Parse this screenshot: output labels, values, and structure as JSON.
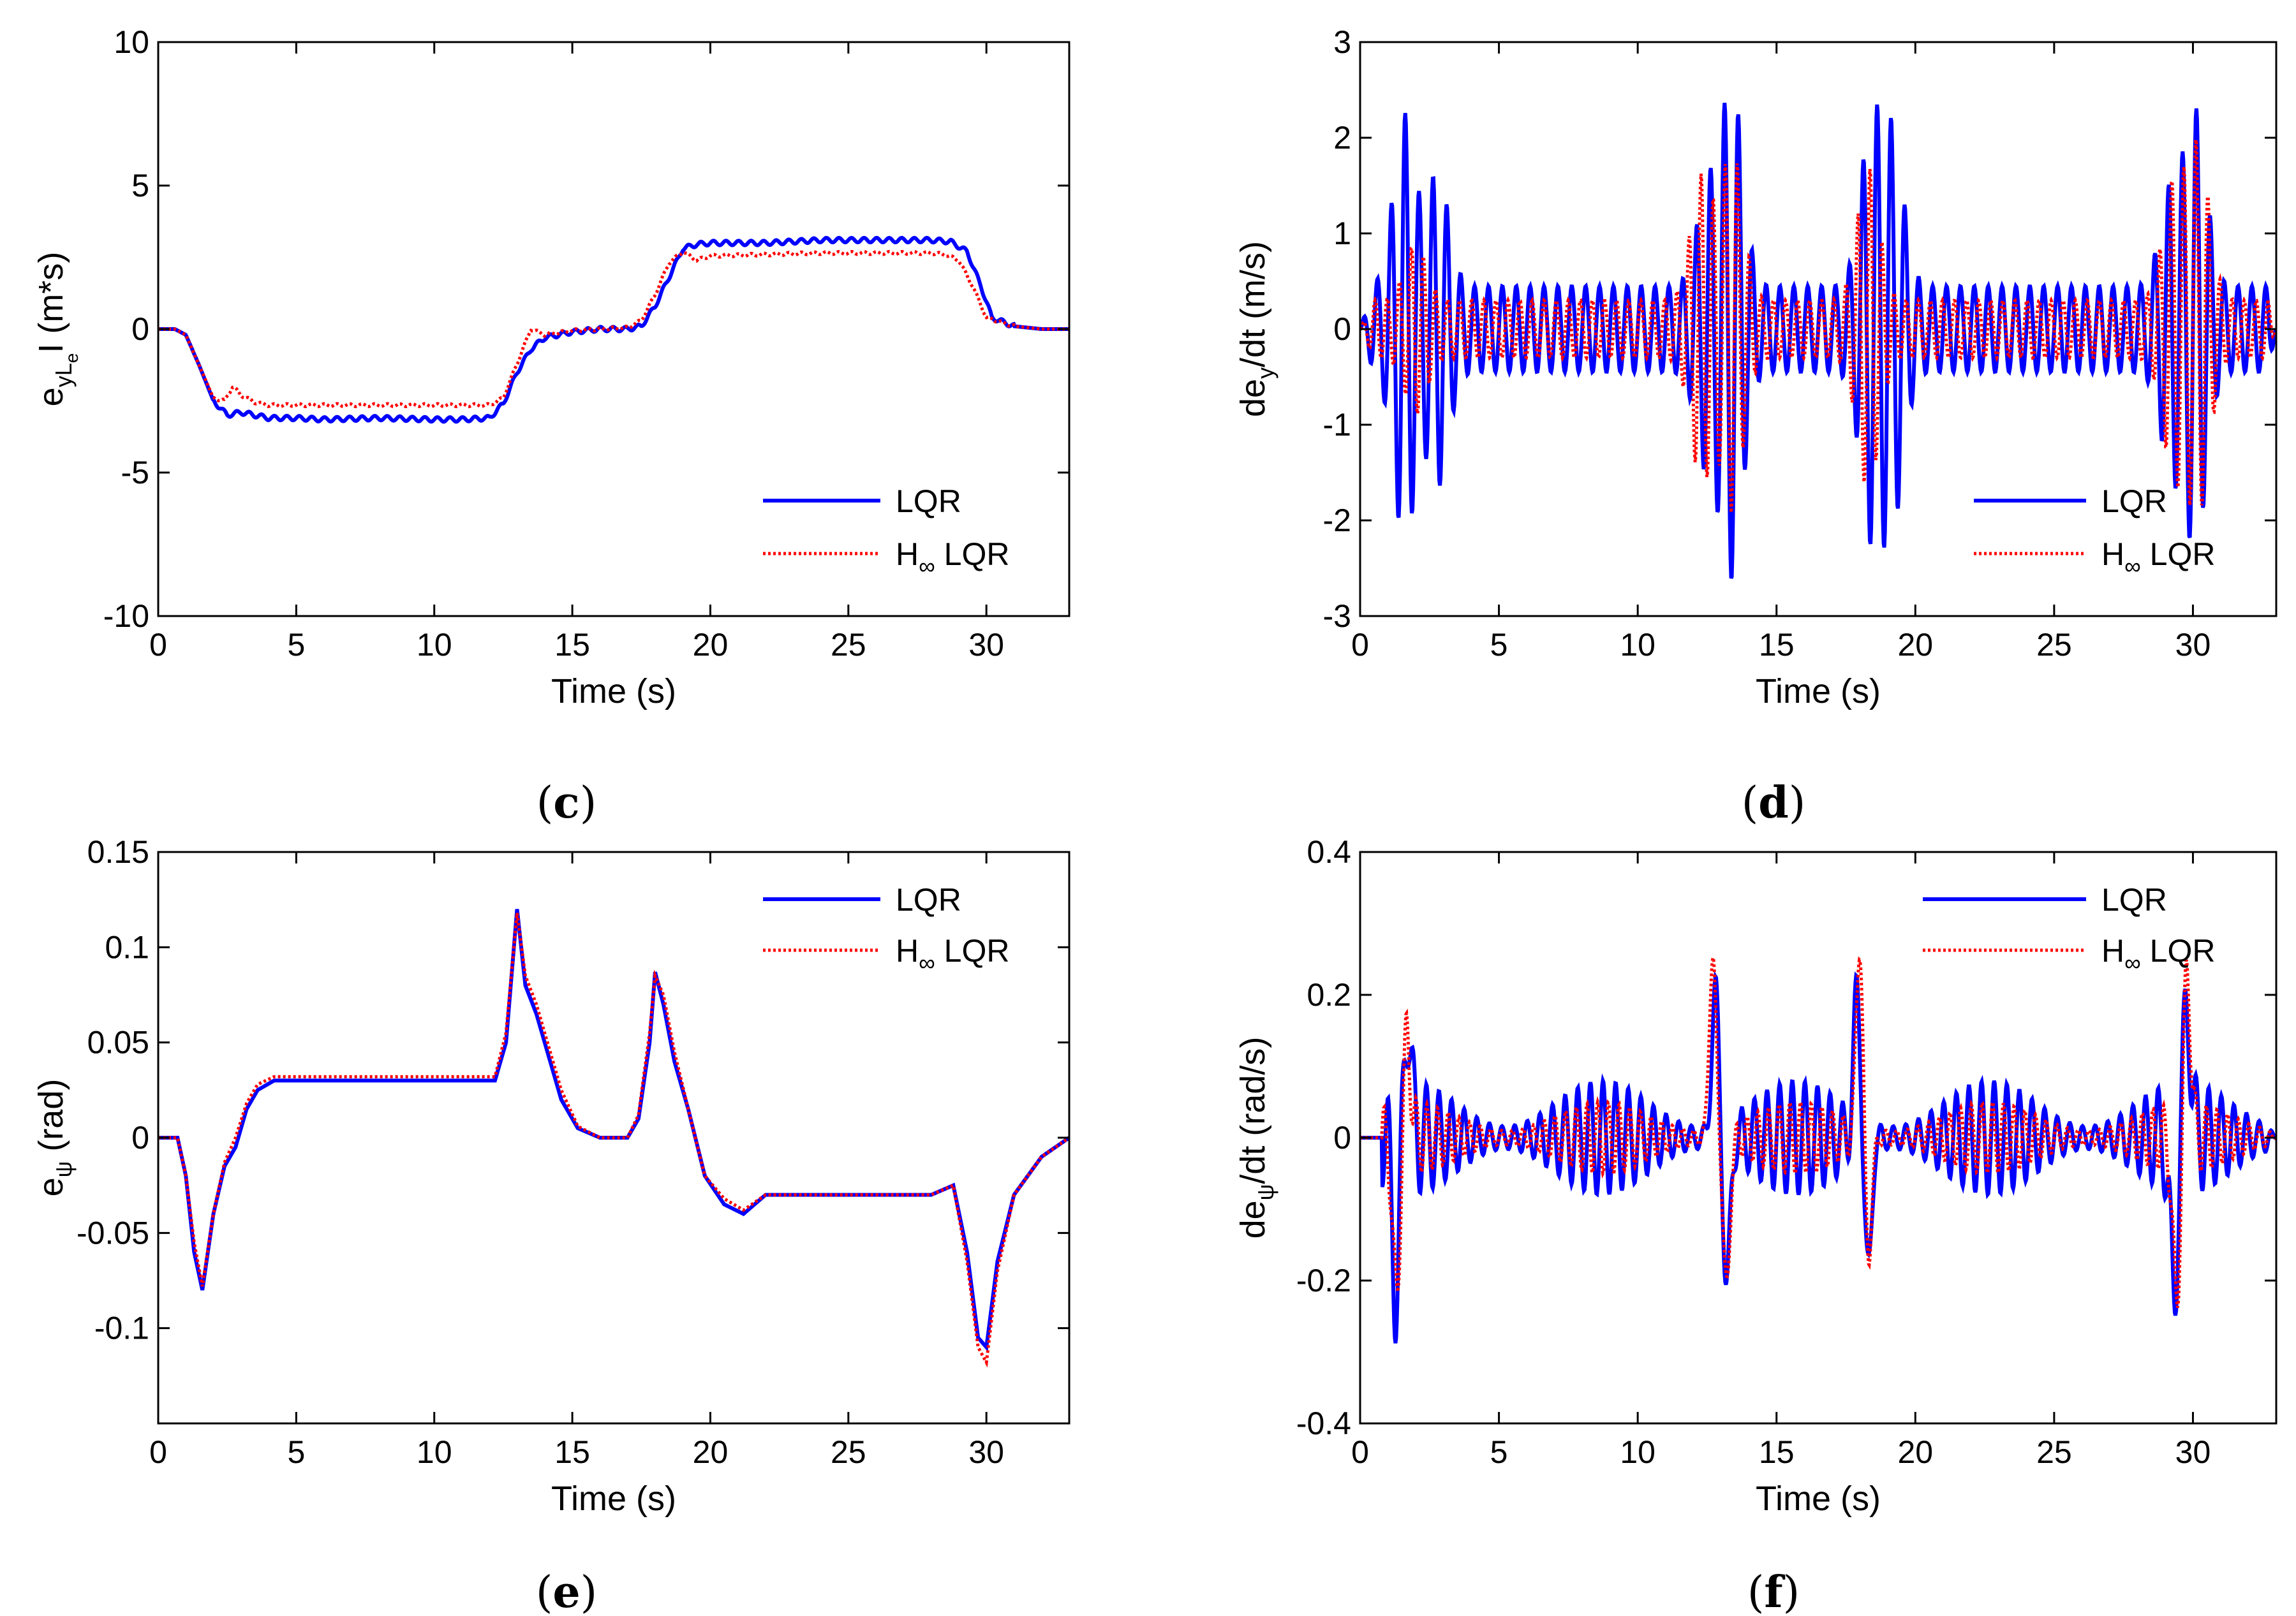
{
  "figure_captions": [
    {
      "paren_open": "(",
      "letter": "c",
      "paren_close": ")"
    },
    {
      "paren_open": "(",
      "letter": "d",
      "paren_close": ")"
    },
    {
      "paren_open": "(",
      "letter": "e",
      "paren_close": ")"
    },
    {
      "paren_open": "(",
      "letter": "f",
      "paren_close": ")"
    }
  ],
  "colors": {
    "lqr": "#0000ff",
    "hinf": "#ff0000",
    "axes": "#000000"
  },
  "chart_data": [
    {
      "id": "c",
      "type": "line",
      "xlabel": "Time (s)",
      "ylabel": {
        "main": "e",
        "sub": "yL",
        "subsub": "e",
        "bar": "I",
        "unit": " (m*s)"
      },
      "xlim": [
        0,
        33
      ],
      "ylim": [
        -10,
        10
      ],
      "xticks": [
        0,
        5,
        10,
        15,
        20,
        25,
        30
      ],
      "xtick_labels": [
        "0",
        "5",
        "10",
        "15",
        "20",
        "25",
        "30"
      ],
      "yticks": [
        -10,
        -5,
        0,
        5,
        10
      ],
      "ytick_labels": [
        "-10",
        "-5",
        "0",
        "5",
        "10"
      ],
      "legend": {
        "position": "bottom-right",
        "lqr": "LQR",
        "hinf_main": "H",
        "hinf_sub": "∞",
        "hinf_rest": " LQR"
      },
      "series": [
        {
          "name": "LQR",
          "style": "solid",
          "color": "#0000ff",
          "x": [
            0,
            0.6,
            1.0,
            1.5,
            2.0,
            2.5,
            3,
            4,
            5,
            6,
            8,
            10,
            11,
            12,
            12.5,
            13,
            13.5,
            14,
            15,
            16,
            17,
            17.5,
            18,
            18.5,
            19,
            19.5,
            20,
            22,
            24,
            26,
            28,
            28.7,
            29.3,
            29.8,
            30.2,
            31,
            32,
            33
          ],
          "y": [
            0,
            0,
            -0.2,
            -1.3,
            -2.5,
            -3.0,
            -2.9,
            -3.1,
            -3.1,
            -3.15,
            -3.1,
            -3.15,
            -3.15,
            -3.1,
            -2.6,
            -1.5,
            -0.7,
            -0.3,
            -0.1,
            0,
            0,
            0.1,
            0.8,
            1.8,
            2.8,
            2.95,
            3.0,
            3.0,
            3.1,
            3.1,
            3.1,
            3.05,
            2.7,
            1.5,
            0.4,
            0.1,
            0,
            0
          ],
          "ripple": 0.08
        },
        {
          "name": "H∞ LQR",
          "style": "dotted",
          "color": "#ff0000",
          "x": [
            0,
            0.6,
            1.0,
            1.5,
            2.0,
            2.4,
            2.7,
            3.0,
            3.5,
            4,
            6,
            8,
            10,
            12,
            12.5,
            13,
            13.5,
            14,
            15,
            16,
            17,
            17.5,
            18,
            18.5,
            19,
            19.5,
            20,
            22,
            24,
            26,
            28,
            28.5,
            29,
            29.5,
            30,
            31,
            32,
            33
          ],
          "y": [
            0,
            0,
            -0.2,
            -1.3,
            -2.4,
            -2.5,
            -2.0,
            -2.3,
            -2.55,
            -2.65,
            -2.65,
            -2.65,
            -2.65,
            -2.65,
            -2.4,
            -1.2,
            0,
            -0.2,
            -0.05,
            0,
            0.05,
            0.3,
            1.2,
            2.3,
            2.7,
            2.4,
            2.55,
            2.6,
            2.65,
            2.65,
            2.65,
            2.6,
            2.4,
            1.5,
            0.4,
            0.1,
            0,
            0
          ],
          "ripple": 0.05
        }
      ]
    },
    {
      "id": "d",
      "type": "line",
      "xlabel": "Time (s)",
      "ylabel": {
        "main": "de",
        "sub": "y",
        "rest": "/dt (m/s)"
      },
      "xlim": [
        0,
        33
      ],
      "ylim": [
        -3,
        3
      ],
      "xticks": [
        0,
        5,
        10,
        15,
        20,
        25,
        30
      ],
      "xtick_labels": [
        "0",
        "5",
        "10",
        "15",
        "20",
        "25",
        "30"
      ],
      "yticks": [
        -3,
        -2,
        -1,
        0,
        1,
        2,
        3
      ],
      "ytick_labels": [
        "-3",
        "-2",
        "-1",
        "0",
        "1",
        "2",
        "3"
      ],
      "legend": {
        "position": "bottom-right",
        "lqr": "LQR",
        "hinf_main": "H",
        "hinf_sub": "∞",
        "hinf_rest": " LQR"
      },
      "series": [
        {
          "name": "LQR",
          "style": "solid",
          "color": "#0000ff",
          "osc_freq": 2.0,
          "bursts": [
            [
              1.6,
              1.8
            ],
            [
              2.8,
              1.2
            ],
            [
              12.5,
              1.0
            ],
            [
              13.4,
              2.1
            ],
            [
              18.4,
              1.65
            ],
            [
              19.2,
              1.5
            ],
            [
              29.2,
              1.0
            ],
            [
              30.1,
              1.8
            ]
          ],
          "base_amp": 0.45
        },
        {
          "name": "H∞ LQR",
          "style": "dotted",
          "color": "#ff0000",
          "osc_freq": 2.3,
          "bursts": [
            [
              2.0,
              0.6
            ],
            [
              12.3,
              1.3
            ],
            [
              13.4,
              1.6
            ],
            [
              18.3,
              1.4
            ],
            [
              29.3,
              1.2
            ],
            [
              30.2,
              1.6
            ]
          ],
          "base_amp": 0.3
        }
      ]
    },
    {
      "id": "e",
      "type": "line",
      "xlabel": "Time (s)",
      "ylabel": {
        "main": "e",
        "sub": "ψ",
        "rest": " (rad)"
      },
      "xlim": [
        0,
        33
      ],
      "ylim": [
        -0.15,
        0.15
      ],
      "xticks": [
        0,
        5,
        10,
        15,
        20,
        25,
        30
      ],
      "xtick_labels": [
        "0",
        "5",
        "10",
        "15",
        "20",
        "25",
        "30"
      ],
      "yticks": [
        -0.1,
        -0.05,
        0,
        0.05,
        0.1,
        0.15
      ],
      "ytick_labels": [
        "-0.1",
        "-0.05",
        "0",
        "0.05",
        "0.1",
        "0.15"
      ],
      "legend": {
        "position": "top-right",
        "lqr": "LQR",
        "hinf_main": "H",
        "hinf_sub": "∞",
        "hinf_rest": " LQR"
      },
      "series": [
        {
          "name": "LQR",
          "style": "solid",
          "color": "#0000ff",
          "x": [
            0,
            0.7,
            1.0,
            1.3,
            1.6,
            2.0,
            2.4,
            2.8,
            3.2,
            3.6,
            4.2,
            5,
            7,
            9,
            11,
            12.2,
            12.6,
            13.0,
            13.3,
            13.7,
            14.0,
            14.6,
            15.2,
            16,
            17,
            17.4,
            17.8,
            18.0,
            18.3,
            18.7,
            19.2,
            19.8,
            20.5,
            21.2,
            22,
            24,
            26,
            28,
            28.8,
            29.3,
            29.7,
            30.0,
            30.4,
            31,
            32,
            33
          ],
          "y": [
            0,
            0,
            -0.02,
            -0.06,
            -0.08,
            -0.04,
            -0.015,
            -0.005,
            0.015,
            0.025,
            0.03,
            0.03,
            0.03,
            0.03,
            0.03,
            0.03,
            0.05,
            0.12,
            0.08,
            0.065,
            0.05,
            0.02,
            0.005,
            0,
            0,
            0.01,
            0.05,
            0.087,
            0.07,
            0.04,
            0.015,
            -0.02,
            -0.035,
            -0.04,
            -0.03,
            -0.03,
            -0.03,
            -0.03,
            -0.025,
            -0.06,
            -0.105,
            -0.11,
            -0.065,
            -0.03,
            -0.01,
            0
          ]
        },
        {
          "name": "H∞ LQR",
          "style": "dotted",
          "color": "#ff0000",
          "x": [
            0,
            0.7,
            1.0,
            1.3,
            1.6,
            2.0,
            2.4,
            2.8,
            3.2,
            3.6,
            4.2,
            5,
            7,
            9,
            11,
            12.2,
            12.6,
            13.0,
            13.3,
            13.7,
            14.0,
            14.6,
            15.2,
            16,
            17,
            17.4,
            17.8,
            18.0,
            18.3,
            18.7,
            19.2,
            19.8,
            20.5,
            21.2,
            22,
            24,
            26,
            28,
            28.8,
            29.3,
            29.7,
            30.0,
            30.4,
            31,
            32,
            33
          ],
          "y": [
            0,
            0,
            -0.02,
            -0.055,
            -0.078,
            -0.04,
            -0.013,
            0,
            0.018,
            0.028,
            0.032,
            0.032,
            0.032,
            0.032,
            0.032,
            0.032,
            0.055,
            0.118,
            0.085,
            0.07,
            0.055,
            0.025,
            0.006,
            0,
            0,
            0.012,
            0.055,
            0.085,
            0.075,
            0.045,
            0.015,
            -0.02,
            -0.032,
            -0.038,
            -0.03,
            -0.03,
            -0.03,
            -0.03,
            -0.025,
            -0.065,
            -0.11,
            -0.118,
            -0.07,
            -0.03,
            -0.01,
            0
          ]
        }
      ]
    },
    {
      "id": "f",
      "type": "line",
      "xlabel": "Time (s)",
      "ylabel": {
        "main": "de",
        "sub": "ψ",
        "rest": "/dt (rad/s)"
      },
      "xlim": [
        0,
        33
      ],
      "ylim": [
        -0.4,
        0.4
      ],
      "xticks": [
        0,
        5,
        10,
        15,
        20,
        25,
        30
      ],
      "xtick_labels": [
        "0",
        "5",
        "10",
        "15",
        "20",
        "25",
        "30"
      ],
      "yticks": [
        -0.4,
        -0.2,
        0,
        0.2,
        0.4
      ],
      "ytick_labels": [
        "-0.4",
        "-0.2",
        "0",
        "0.2",
        "0.4"
      ],
      "legend": {
        "position": "top-right",
        "lqr": "LQR",
        "hinf_main": "H",
        "hinf_sub": "∞",
        "hinf_rest": " LQR"
      },
      "series": [
        {
          "name": "LQR",
          "style": "solid",
          "color": "#0000ff",
          "osc_freq": 2.2,
          "spikes": [
            [
              1.3,
              -0.22
            ],
            [
              1.7,
              0.18
            ],
            [
              12.8,
              0.21
            ],
            [
              13.2,
              -0.21
            ],
            [
              17.9,
              0.2
            ],
            [
              18.3,
              -0.19
            ],
            [
              29.3,
              -0.23
            ],
            [
              29.8,
              0.19
            ]
          ],
          "base_amp": 0.08
        },
        {
          "name": "H∞ LQR",
          "style": "dotted",
          "color": "#ff0000",
          "osc_freq": 2.6,
          "spikes": [
            [
              1.3,
              -0.23
            ],
            [
              1.7,
              0.14
            ],
            [
              12.7,
              0.25
            ],
            [
              13.2,
              -0.21
            ],
            [
              18.0,
              0.28
            ],
            [
              18.3,
              -0.18
            ],
            [
              29.4,
              -0.24
            ],
            [
              29.8,
              0.23
            ]
          ],
          "base_amp": 0.05
        }
      ]
    }
  ]
}
